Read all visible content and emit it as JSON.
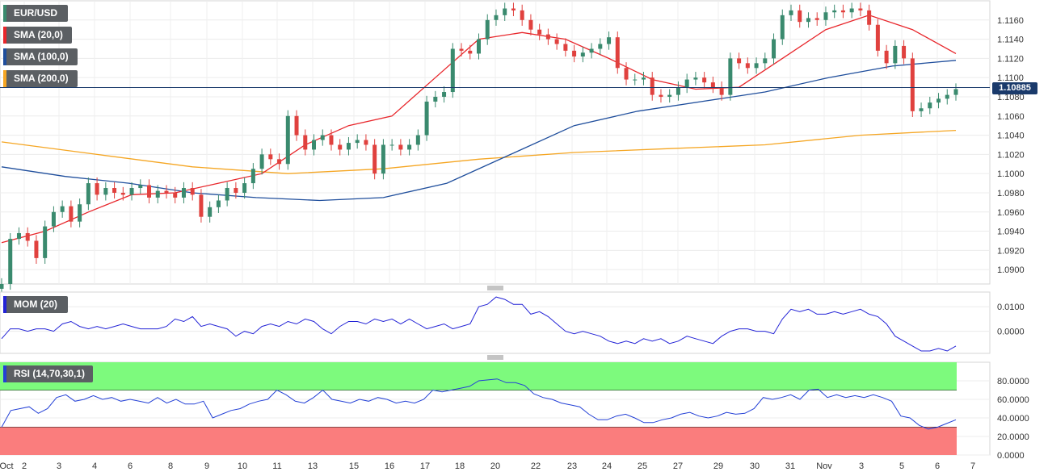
{
  "legend": {
    "symbol": "EUR/USD",
    "sma20": "SMA (20,0)",
    "sma100": "SMA (100,0)",
    "sma200": "SMA (200,0)",
    "mom": "MOM (20)",
    "rsi": "RSI (14,70,30,1)"
  },
  "colors": {
    "up": "#3a8a6e",
    "down": "#e0413e",
    "sma20": "#e8262b",
    "sma100": "#1f4e9c",
    "sma200": "#f5a623",
    "mom": "#2323d6",
    "rsi_line": "#2340d6",
    "rsi_overbought_zone": "#7dfa7d",
    "rsi_oversold_zone": "#fa7d7d",
    "current_price_line": "#1a3a6b"
  },
  "current_price": "1.10885",
  "chart_data": [
    {
      "type": "candlestick",
      "title": "EUR/USD",
      "y_ticks": [
        "1.1160",
        "1.1140",
        "1.1120",
        "1.1100",
        "1.1080",
        "1.1060",
        "1.1040",
        "1.1020",
        "1.1000",
        "1.0980",
        "1.0960",
        "1.0940",
        "1.0920",
        "1.0900"
      ],
      "ylim": [
        1.0885,
        1.118
      ],
      "x_ticks": [
        "Oct",
        "2",
        "3",
        "4",
        "6",
        "8",
        "9",
        "10",
        "11",
        "13",
        "15",
        "16",
        "17",
        "18",
        "20",
        "22",
        "23",
        "24",
        "25",
        "27",
        "29",
        "30",
        "31",
        "Nov",
        "3",
        "5",
        "6",
        "7"
      ],
      "current_price": 1.10885,
      "candles_close_approx": [
        1.0885,
        1.0932,
        1.0938,
        1.093,
        1.0912,
        1.0945,
        1.096,
        1.0966,
        1.095,
        1.0968,
        1.099,
        1.0978,
        1.0985,
        1.098,
        1.0978,
        1.0985,
        1.0988,
        1.0975,
        1.0982,
        1.098,
        1.0975,
        1.0985,
        1.0978,
        1.0955,
        1.0965,
        1.0972,
        1.0985,
        1.098,
        1.099,
        1.1005,
        1.102,
        1.1015,
        1.101,
        1.106,
        1.104,
        1.1025,
        1.1035,
        1.104,
        1.103,
        1.1025,
        1.1032,
        1.1035,
        1.103,
        1.1,
        1.103,
        1.103,
        1.1025,
        1.103,
        1.104,
        1.1075,
        1.108,
        1.1085,
        1.113,
        1.1128,
        1.1125,
        1.114,
        1.116,
        1.1165,
        1.1172,
        1.117,
        1.116,
        1.115,
        1.1145,
        1.114,
        1.1135,
        1.1128,
        1.1122,
        1.1126,
        1.113,
        1.1135,
        1.1142,
        1.111,
        1.1098,
        1.1098,
        1.11,
        1.1082,
        1.108,
        1.1082,
        1.109,
        1.1098,
        1.11,
        1.1095,
        1.109,
        1.1082,
        1.112,
        1.1115,
        1.111,
        1.1115,
        1.112,
        1.114,
        1.1165,
        1.117,
        1.1158,
        1.1162,
        1.116,
        1.1168,
        1.117,
        1.1168,
        1.1172,
        1.117,
        1.1155,
        1.1128,
        1.1115,
        1.1133,
        1.112,
        1.1065,
        1.1068,
        1.1074,
        1.1078,
        1.1082,
        1.1088
      ],
      "series": [
        {
          "name": "SMA (20,0)",
          "values_approx": [
            1.0928,
            1.094,
            1.096,
            1.0978,
            1.098,
            1.099,
            1.1,
            1.103,
            1.105,
            1.106,
            1.11,
            1.114,
            1.1147,
            1.114,
            1.112,
            1.1098,
            1.1088,
            1.109,
            1.112,
            1.115,
            1.1165,
            1.115,
            1.1125
          ]
        },
        {
          "name": "SMA (100,0)",
          "values_approx": [
            1.1007,
            1.0997,
            1.099,
            1.098,
            1.0975,
            1.0972,
            1.0975,
            1.099,
            1.102,
            1.105,
            1.1065,
            1.1075,
            1.1085,
            1.11,
            1.1112,
            1.1118
          ]
        },
        {
          "name": "SMA (200,0)",
          "values_approx": [
            1.1033,
            1.102,
            1.1007,
            1.1,
            1.1005,
            1.1015,
            1.1022,
            1.1026,
            1.103,
            1.104,
            1.1045
          ]
        }
      ]
    },
    {
      "type": "line",
      "title": "MOM (20)",
      "y_ticks": [
        "0.0100",
        "0.0000"
      ],
      "ylim": [
        -0.009,
        0.016
      ],
      "values_approx": [
        -0.003,
        0.001,
        0.001,
        0.0,
        0.001,
        0.001,
        0.0,
        0.003,
        0.004,
        0.002,
        0.001,
        0.002,
        0.001,
        0.002,
        0.003,
        0.002,
        0.001,
        0.001,
        0.001,
        0.002,
        0.005,
        0.004,
        0.006,
        0.002,
        0.003,
        0.002,
        0.001,
        -0.002,
        0.0,
        -0.001,
        0.002,
        0.003,
        0.002,
        0.004,
        0.003,
        0.005,
        0.004,
        0.001,
        -0.001,
        0.002,
        0.004,
        0.004,
        0.003,
        0.005,
        0.004,
        0.005,
        0.003,
        0.005,
        0.003,
        0.001,
        0.002,
        0.003,
        0.001,
        0.002,
        0.003,
        0.01,
        0.011,
        0.014,
        0.013,
        0.011,
        0.011,
        0.007,
        0.008,
        0.006,
        0.003,
        0.0,
        -0.001,
        0.0,
        -0.001,
        -0.002,
        -0.004,
        -0.005,
        -0.004,
        -0.005,
        -0.003,
        -0.004,
        -0.003,
        -0.005,
        -0.004,
        -0.002,
        -0.003,
        -0.004,
        -0.005,
        -0.002,
        0.0,
        0.001,
        0.001,
        0.0,
        0.0,
        -0.001,
        0.005,
        0.009,
        0.008,
        0.009,
        0.007,
        0.007,
        0.008,
        0.007,
        0.008,
        0.009,
        0.007,
        0.006,
        0.003,
        -0.002,
        -0.004,
        -0.006,
        -0.008,
        -0.008,
        -0.007,
        -0.008,
        -0.006
      ]
    },
    {
      "type": "line",
      "title": "RSI (14,70,30,1)",
      "y_ticks": [
        "80.0000",
        "60.0000",
        "40.0000",
        "20.0000",
        "0.0000"
      ],
      "ylim": [
        0,
        100
      ],
      "overbought": 70,
      "oversold": 30,
      "values_approx": [
        30,
        48,
        50,
        52,
        45,
        50,
        62,
        65,
        58,
        60,
        64,
        60,
        62,
        58,
        60,
        58,
        56,
        62,
        56,
        60,
        55,
        55,
        58,
        40,
        44,
        48,
        50,
        55,
        58,
        60,
        70,
        65,
        58,
        56,
        62,
        70,
        60,
        58,
        56,
        60,
        58,
        62,
        60,
        56,
        58,
        56,
        60,
        70,
        68,
        70,
        72,
        74,
        80,
        81,
        82,
        78,
        78,
        75,
        66,
        62,
        60,
        56,
        54,
        52,
        44,
        38,
        38,
        42,
        44,
        40,
        35,
        35,
        38,
        40,
        44,
        46,
        42,
        40,
        42,
        46,
        44,
        45,
        50,
        62,
        60,
        62,
        65,
        60,
        70,
        71,
        62,
        65,
        62,
        64,
        62,
        65,
        62,
        58,
        42,
        40,
        32,
        28,
        30,
        34,
        38
      ]
    }
  ]
}
